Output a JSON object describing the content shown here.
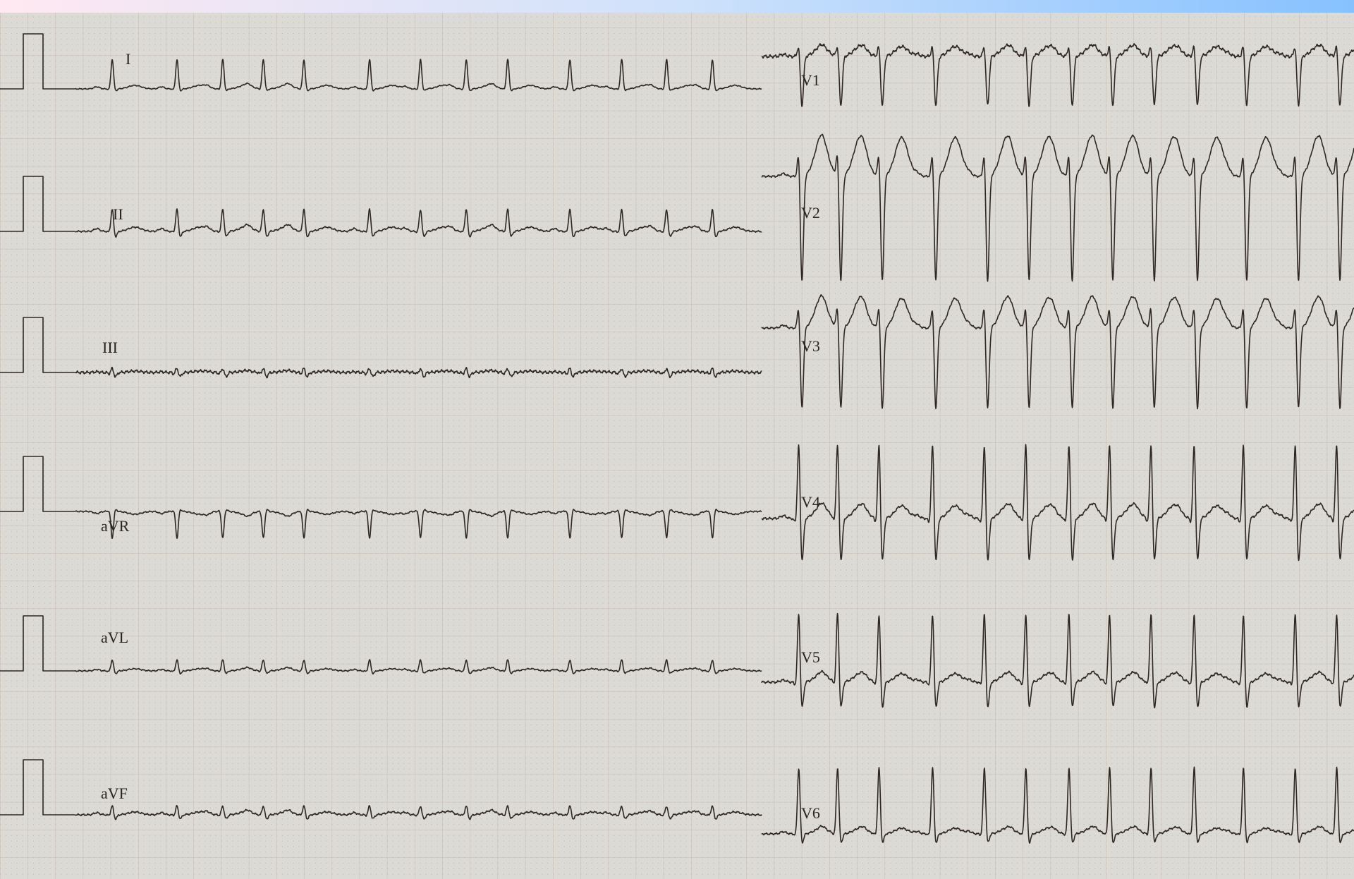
{
  "limb_leads": [
    "I",
    "II",
    "III",
    "aVR",
    "aVL",
    "aVF"
  ],
  "chest_leads": [
    "V1",
    "V2",
    "V3",
    "V4",
    "V5",
    "V6"
  ]
}
